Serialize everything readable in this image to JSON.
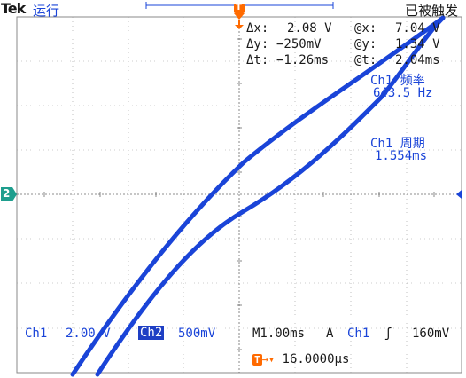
{
  "header": {
    "brand": "Tek",
    "run_state": "运行",
    "status": "已被触发"
  },
  "markers": {
    "trigger_position": "T",
    "channel_ref": "2"
  },
  "cursor_readout": {
    "dx_label": "Δx:",
    "dx_value": "2.08 V",
    "ax_label": "@x:",
    "ax_value": "7.04 V",
    "dy_label": "Δy:",
    "dy_value": "−250mV",
    "ay_label": "@y:",
    "ay_value": "1.34 V",
    "dt_label": "Δt:",
    "dt_value": "−1.26ms",
    "at_label": "@t:",
    "at_value": "2.04ms"
  },
  "measurements": {
    "freq_label": "Ch1 频率",
    "freq_value": "643.5 Hz",
    "period_label": "Ch1 周期",
    "period_value": "1.554ms"
  },
  "footer": {
    "ch1_label": "Ch1",
    "ch1_scale": "2.00 V",
    "ch2_label": "Ch2",
    "ch2_scale": "500mV",
    "timebase": "M1.00ms",
    "trigger_mode": "A",
    "trigger_source": "Ch1",
    "trigger_slope": "ʃ",
    "trigger_level": "160mV",
    "trigger_offset_badge": "T",
    "trigger_offset": "16.0000µs"
  },
  "colors": {
    "trace": "#1a44d8",
    "grid": "#8a8a8a",
    "trigger": "#ff6a00",
    "channel2": "#1e9e8e"
  }
}
